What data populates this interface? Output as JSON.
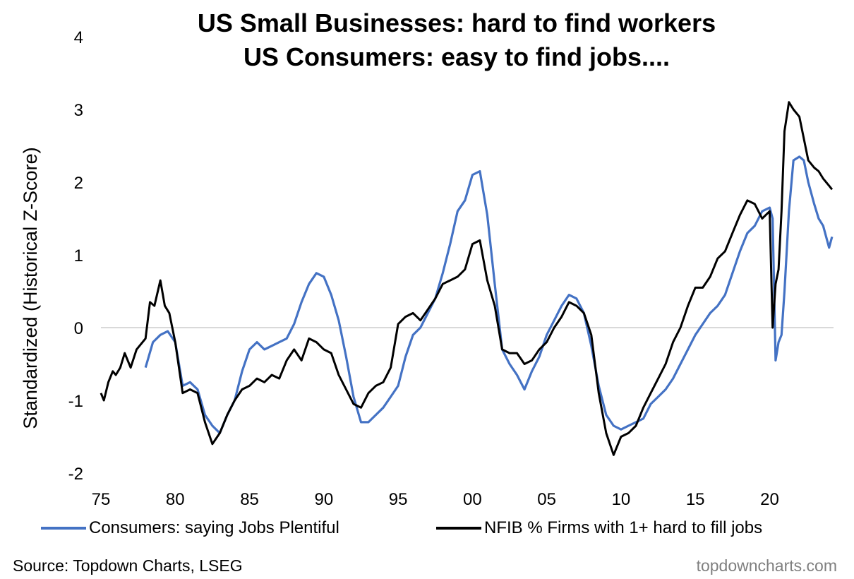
{
  "chart_data": {
    "type": "line",
    "title": "US Small Businesses: hard to find workers",
    "subtitle": "US Consumers: easy to find jobs....",
    "ylabel": "Standardized (Historical Z-Score)",
    "xlabel": "",
    "xlim": [
      1975,
      2024.3
    ],
    "ylim": [
      -2,
      4
    ],
    "x_ticks": [
      1975,
      1980,
      1985,
      1990,
      1995,
      2000,
      2005,
      2010,
      2015,
      2020
    ],
    "x_tick_labels": [
      "75",
      "80",
      "85",
      "90",
      "95",
      "00",
      "05",
      "10",
      "15",
      "20"
    ],
    "y_ticks": [
      -2,
      -1,
      0,
      1,
      2,
      3,
      4
    ],
    "y_tick_labels": [
      "-2",
      "-1",
      "0",
      "1",
      "2",
      "3",
      "4"
    ],
    "grid": "zero line only",
    "legend_position": "bottom",
    "source": "Source: Topdown Charts, LSEG",
    "watermark": "topdowncharts.com",
    "series": [
      {
        "name": "Consumers: saying Jobs Plentiful",
        "color": "#4472c4",
        "x": [
          1978.0,
          1978.5,
          1979.0,
          1979.5,
          1980.0,
          1980.5,
          1981.0,
          1981.5,
          1982.0,
          1982.5,
          1983.0,
          1983.5,
          1984.0,
          1984.5,
          1985.0,
          1985.5,
          1986.0,
          1986.5,
          1987.0,
          1987.5,
          1988.0,
          1988.5,
          1989.0,
          1989.5,
          1990.0,
          1990.5,
          1991.0,
          1991.5,
          1992.0,
          1992.5,
          1993.0,
          1993.5,
          1994.0,
          1994.5,
          1995.0,
          1995.5,
          1996.0,
          1996.5,
          1997.0,
          1997.5,
          1998.0,
          1998.5,
          1999.0,
          1999.5,
          2000.0,
          2000.5,
          2001.0,
          2001.5,
          2002.0,
          2002.5,
          2003.0,
          2003.5,
          2004.0,
          2004.5,
          2005.0,
          2005.5,
          2006.0,
          2006.5,
          2007.0,
          2007.5,
          2008.0,
          2008.5,
          2009.0,
          2009.5,
          2010.0,
          2010.5,
          2011.0,
          2011.5,
          2012.0,
          2012.5,
          2013.0,
          2013.5,
          2014.0,
          2014.5,
          2015.0,
          2015.5,
          2016.0,
          2016.5,
          2017.0,
          2017.5,
          2018.0,
          2018.5,
          2019.0,
          2019.5,
          2020.0,
          2020.2,
          2020.4,
          2020.6,
          2020.8,
          2021.0,
          2021.3,
          2021.6,
          2022.0,
          2022.3,
          2022.6,
          2023.0,
          2023.3,
          2023.6,
          2024.0,
          2024.2
        ],
        "y": [
          -0.55,
          -0.2,
          -0.1,
          -0.05,
          -0.2,
          -0.8,
          -0.75,
          -0.85,
          -1.2,
          -1.35,
          -1.45,
          -1.2,
          -1.0,
          -0.6,
          -0.3,
          -0.2,
          -0.3,
          -0.25,
          -0.2,
          -0.15,
          0.05,
          0.35,
          0.6,
          0.75,
          0.7,
          0.45,
          0.1,
          -0.4,
          -0.95,
          -1.3,
          -1.3,
          -1.2,
          -1.1,
          -0.95,
          -0.8,
          -0.4,
          -0.1,
          0.0,
          0.2,
          0.4,
          0.75,
          1.15,
          1.6,
          1.75,
          2.1,
          2.15,
          1.55,
          0.6,
          -0.3,
          -0.5,
          -0.65,
          -0.85,
          -0.6,
          -0.4,
          -0.1,
          0.1,
          0.3,
          0.45,
          0.4,
          0.2,
          -0.25,
          -0.8,
          -1.2,
          -1.35,
          -1.4,
          -1.35,
          -1.3,
          -1.25,
          -1.05,
          -0.95,
          -0.85,
          -0.7,
          -0.5,
          -0.3,
          -0.1,
          0.05,
          0.2,
          0.3,
          0.45,
          0.75,
          1.05,
          1.3,
          1.4,
          1.6,
          1.65,
          1.5,
          -0.45,
          -0.2,
          -0.1,
          0.5,
          1.6,
          2.3,
          2.35,
          2.3,
          2.0,
          1.7,
          1.5,
          1.4,
          1.1,
          1.25
        ]
      },
      {
        "name": "NFIB % Firms with 1+ hard to fill jobs",
        "color": "#000000",
        "x": [
          1975.0,
          1975.2,
          1975.5,
          1975.8,
          1976.0,
          1976.3,
          1976.6,
          1977.0,
          1977.4,
          1977.8,
          1978.0,
          1978.3,
          1978.6,
          1979.0,
          1979.3,
          1979.6,
          1980.0,
          1980.5,
          1981.0,
          1981.5,
          1982.0,
          1982.5,
          1983.0,
          1983.5,
          1984.0,
          1984.5,
          1985.0,
          1985.5,
          1986.0,
          1986.5,
          1987.0,
          1987.5,
          1988.0,
          1988.5,
          1989.0,
          1989.5,
          1990.0,
          1990.5,
          1991.0,
          1991.5,
          1992.0,
          1992.5,
          1993.0,
          1993.5,
          1994.0,
          1994.5,
          1995.0,
          1995.5,
          1996.0,
          1996.5,
          1997.0,
          1997.5,
          1998.0,
          1998.5,
          1999.0,
          1999.5,
          2000.0,
          2000.5,
          2001.0,
          2001.5,
          2002.0,
          2002.5,
          2003.0,
          2003.5,
          2004.0,
          2004.5,
          2005.0,
          2005.5,
          2006.0,
          2006.5,
          2007.0,
          2007.5,
          2008.0,
          2008.5,
          2009.0,
          2009.5,
          2010.0,
          2010.5,
          2011.0,
          2011.5,
          2012.0,
          2012.5,
          2013.0,
          2013.5,
          2014.0,
          2014.5,
          2015.0,
          2015.5,
          2016.0,
          2016.5,
          2017.0,
          2017.5,
          2018.0,
          2018.5,
          2019.0,
          2019.5,
          2020.0,
          2020.2,
          2020.4,
          2020.6,
          2020.8,
          2021.0,
          2021.3,
          2021.6,
          2022.0,
          2022.3,
          2022.6,
          2023.0,
          2023.3,
          2023.6,
          2024.0,
          2024.2
        ],
        "y": [
          -0.9,
          -1.0,
          -0.75,
          -0.6,
          -0.65,
          -0.55,
          -0.35,
          -0.55,
          -0.3,
          -0.2,
          -0.15,
          0.35,
          0.3,
          0.65,
          0.3,
          0.2,
          -0.2,
          -0.9,
          -0.85,
          -0.9,
          -1.3,
          -1.6,
          -1.45,
          -1.2,
          -1.0,
          -0.85,
          -0.8,
          -0.7,
          -0.75,
          -0.65,
          -0.7,
          -0.45,
          -0.3,
          -0.45,
          -0.15,
          -0.2,
          -0.3,
          -0.35,
          -0.65,
          -0.85,
          -1.05,
          -1.1,
          -0.9,
          -0.8,
          -0.75,
          -0.55,
          0.05,
          0.15,
          0.2,
          0.1,
          0.25,
          0.4,
          0.6,
          0.65,
          0.7,
          0.8,
          1.15,
          1.2,
          0.65,
          0.3,
          -0.3,
          -0.35,
          -0.35,
          -0.5,
          -0.45,
          -0.3,
          -0.2,
          0.0,
          0.15,
          0.35,
          0.3,
          0.2,
          -0.1,
          -0.9,
          -1.45,
          -1.75,
          -1.5,
          -1.45,
          -1.35,
          -1.1,
          -0.9,
          -0.7,
          -0.5,
          -0.2,
          0.0,
          0.3,
          0.55,
          0.55,
          0.7,
          0.95,
          1.05,
          1.3,
          1.55,
          1.75,
          1.7,
          1.5,
          1.6,
          0.0,
          0.6,
          0.8,
          1.6,
          2.7,
          3.1,
          3.0,
          2.9,
          2.6,
          2.3,
          2.2,
          2.15,
          2.05,
          1.95,
          1.9
        ]
      }
    ]
  }
}
